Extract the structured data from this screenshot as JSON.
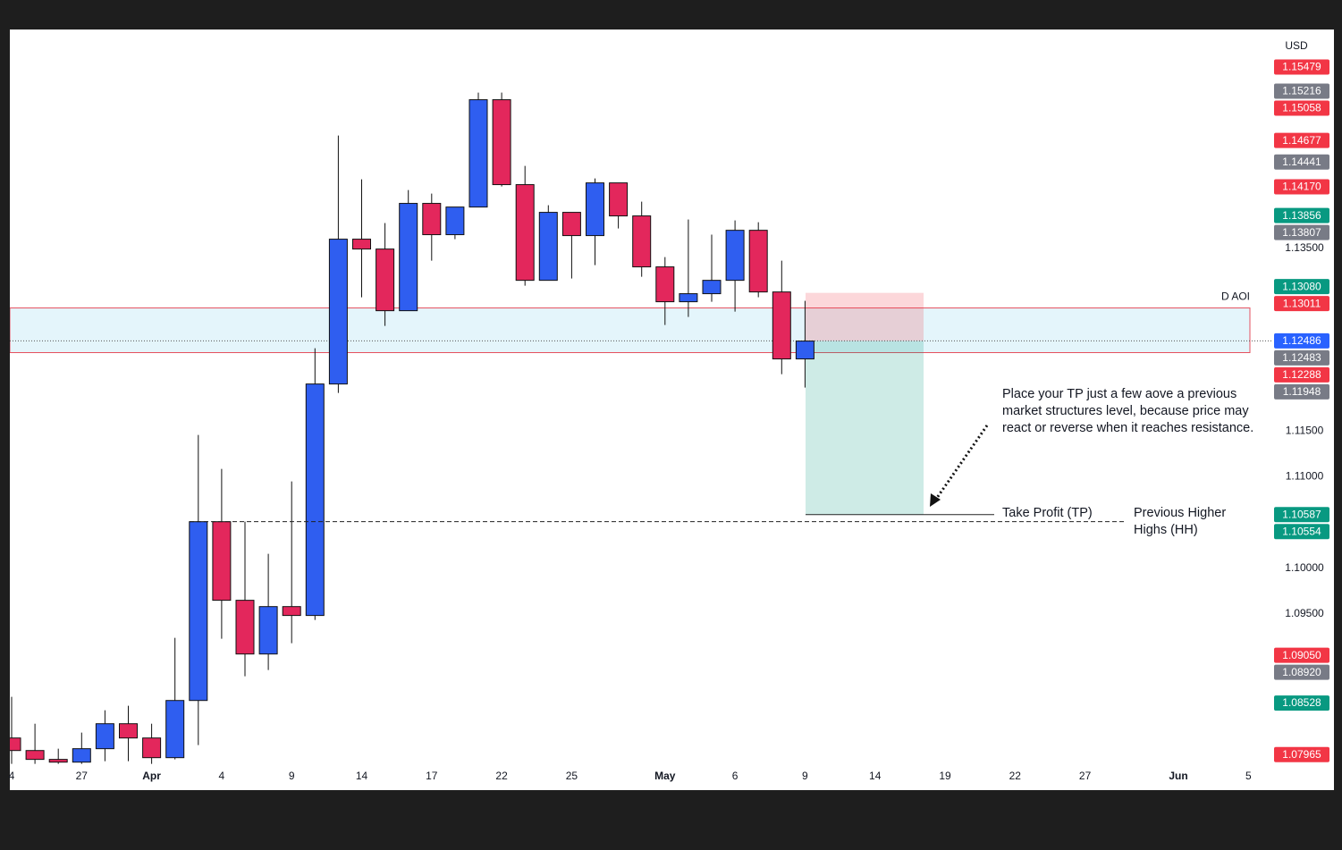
{
  "chart_data": {
    "type": "candlestick",
    "currency": "USD",
    "categories": [
      "4",
      null,
      null,
      "27",
      null,
      null,
      "Apr",
      null,
      null,
      "4",
      null,
      null,
      "9",
      null,
      null,
      "14",
      null,
      null,
      "17",
      null,
      null,
      "22",
      null,
      null,
      "25",
      null,
      null,
      null,
      "May",
      null,
      null,
      "6",
      null,
      null,
      "9",
      null,
      null,
      "14",
      null,
      null,
      "19",
      null,
      null,
      "22",
      null,
      null,
      "27",
      null,
      null,
      null,
      "Jun",
      null,
      null,
      "5"
    ],
    "open": [
      1.08146,
      1.08009,
      1.07912,
      1.07882,
      1.08029,
      1.08302,
      1.08146,
      1.07931,
      1.08556,
      1.1051,
      1.09651,
      1.09064,
      1.09582,
      1.09485,
      1.12015,
      1.13598,
      1.1349,
      1.12816,
      1.13989,
      1.13647,
      1.13949,
      1.15122,
      1.14194,
      1.13148,
      1.13891,
      1.13637,
      1.14213,
      1.13852,
      1.13295,
      1.12914,
      1.13002,
      1.13148,
      1.13695,
      1.13021,
      1.12289,
      null,
      null,
      null,
      null,
      null,
      null,
      null,
      null,
      null,
      null,
      null,
      null,
      null,
      null,
      null,
      null,
      null,
      null,
      null
    ],
    "high": [
      1.08596,
      1.08302,
      1.08029,
      1.08205,
      1.08449,
      1.08498,
      1.08302,
      1.0924,
      1.11458,
      1.11087,
      1.1051,
      1.10159,
      1.1095,
      1.12406,
      1.14731,
      1.14252,
      1.13774,
      1.14135,
      1.14096,
      1.13949,
      1.152,
      1.152,
      1.14399,
      1.13969,
      1.13891,
      1.14262,
      1.14213,
      1.14008,
      1.13402,
      1.13813,
      1.13647,
      1.13803,
      1.13783,
      1.13363,
      1.12924,
      null,
      null,
      null,
      null,
      null,
      null,
      null,
      null,
      null,
      null,
      null,
      null,
      null,
      null,
      null,
      null,
      null,
      null,
      null
    ],
    "low": [
      1.07863,
      1.07863,
      1.07863,
      1.07863,
      1.07892,
      1.07892,
      1.07863,
      1.07912,
      1.08068,
      1.09231,
      1.0882,
      1.08889,
      1.09182,
      1.09436,
      1.11917,
      1.12963,
      1.1265,
      1.12816,
      1.13363,
      1.13598,
      1.13949,
      1.14174,
      1.1309,
      1.13148,
      1.13168,
      1.13314,
      1.13715,
      1.13187,
      1.1266,
      1.12748,
      1.12914,
      1.12806,
      1.12963,
      1.12122,
      1.11976,
      null,
      null,
      null,
      null,
      null,
      null,
      null,
      null,
      null,
      null,
      null,
      null,
      null,
      null,
      null,
      null,
      null,
      null,
      null
    ],
    "close": [
      1.08009,
      1.07912,
      1.07882,
      1.08029,
      1.08302,
      1.08146,
      1.07931,
      1.08556,
      1.1051,
      1.09651,
      1.09064,
      1.09582,
      1.09485,
      1.12015,
      1.13598,
      1.1349,
      1.12816,
      1.13989,
      1.13647,
      1.13949,
      1.15122,
      1.14194,
      1.13148,
      1.13891,
      1.13637,
      1.14213,
      1.13852,
      1.13295,
      1.12914,
      1.13002,
      1.13148,
      1.13695,
      1.13021,
      1.12289,
      1.12484,
      null,
      null,
      null,
      null,
      null,
      null,
      null,
      null,
      null,
      null,
      null,
      null,
      null,
      null,
      null,
      null,
      null,
      null,
      null
    ],
    "up_color": "#2f5ef0",
    "down_color": "#e3275c",
    "ylim": [
      1.0784,
      1.1587
    ],
    "yticks": [
      {
        "value": 1.135,
        "label": "1.13500"
      },
      {
        "value": 1.115,
        "label": "1.11500"
      },
      {
        "value": 1.11,
        "label": "1.11000"
      },
      {
        "value": 1.1,
        "label": "1.10000"
      },
      {
        "value": 1.095,
        "label": "1.09500"
      }
    ],
    "price_tags": [
      {
        "value": 1.15479,
        "color": "#f23645"
      },
      {
        "value": 1.15216,
        "color": "#787b86"
      },
      {
        "value": 1.15058,
        "color": "#f23645"
      },
      {
        "value": 1.14677,
        "color": "#f23645"
      },
      {
        "value": 1.14441,
        "color": "#787b86"
      },
      {
        "value": 1.1417,
        "label": "1.14170",
        "color": "#f23645"
      },
      {
        "value": 1.13856,
        "color": "#089981"
      },
      {
        "value": 1.13807,
        "color": "#787b86"
      },
      {
        "value": 1.1308,
        "label": "1.13080",
        "color": "#089981"
      },
      {
        "value": 1.13011,
        "color": "#f23645"
      },
      {
        "value": 1.12486,
        "color": "#2962ff"
      },
      {
        "value": 1.12483,
        "color": "#787b86"
      },
      {
        "value": 1.12288,
        "color": "#f23645"
      },
      {
        "value": 1.11948,
        "color": "#787b86"
      },
      {
        "value": 1.10587,
        "color": "#089981"
      },
      {
        "value": 1.10554,
        "color": "#089981"
      },
      {
        "value": 1.0905,
        "label": "1.09050",
        "color": "#f23645"
      },
      {
        "value": 1.0892,
        "label": "1.08920",
        "color": "#787b86"
      },
      {
        "value": 1.08528,
        "color": "#089981"
      },
      {
        "value": 1.07965,
        "color": "#f23645"
      }
    ],
    "aoi": {
      "label": "D AOI",
      "top": 1.12846,
      "bottom": 1.12358
    },
    "position": {
      "stop": 1.13011,
      "entry": 1.12486,
      "target": 1.10587,
      "target_label": "Take Profit (TP)"
    },
    "level": {
      "value": 1.1051,
      "label": "Previous Higher Highs (HH)"
    },
    "annotation": "Place your TP just a few aove a previous market structures level, because price may react or reverse when it reaches resistance."
  }
}
